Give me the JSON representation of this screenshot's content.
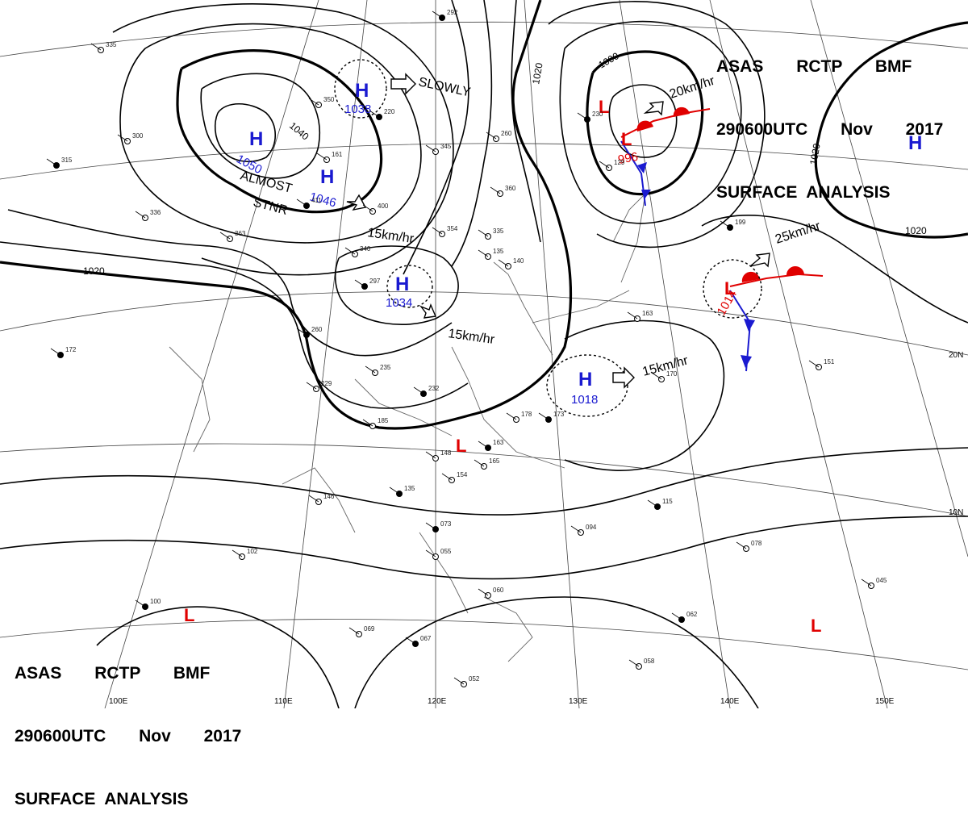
{
  "header": {
    "line1_a": "ASAS",
    "line1_b": "RCTP",
    "line1_c": "BMF",
    "line2_a": "290600UTC",
    "line2_b": "Nov",
    "line2_c": "2017",
    "line3": "SURFACE  ANALYSIS"
  },
  "isobar_labels": [
    "1040",
    "1020",
    "1020",
    "1020",
    "1000"
  ],
  "highs": [
    {
      "symbol": "H",
      "value": "1050"
    },
    {
      "symbol": "H",
      "value": "1046"
    },
    {
      "symbol": "H",
      "value": "1038"
    },
    {
      "symbol": "H",
      "value": "1034"
    },
    {
      "symbol": "H",
      "value": "1018"
    },
    {
      "symbol": "H",
      "value": ""
    }
  ],
  "lows": [
    {
      "symbol": "L",
      "value": "996"
    },
    {
      "symbol": "L",
      "value": "1014"
    },
    {
      "symbol": "L",
      "value": ""
    },
    {
      "symbol": "L",
      "value": ""
    },
    {
      "symbol": "L",
      "value": ""
    }
  ],
  "motions": [
    "SLOWLY",
    "ALMOST",
    "STNR",
    "15km/hr",
    "15km/hr",
    "15km/hr",
    "20km/hr",
    "25km/hr"
  ],
  "lat_labels": [
    "20N",
    "10N"
  ],
  "lon_labels": [
    "100E",
    "110E",
    "120E",
    "130E",
    "140E",
    "150E"
  ],
  "station_plots": [
    "292",
    "335",
    "300",
    "315",
    "336",
    "363",
    "172",
    "350",
    "161",
    "411",
    "400",
    "340",
    "297",
    "354",
    "335",
    "260",
    "235",
    "229",
    "232",
    "185",
    "146",
    "135",
    "148",
    "154",
    "163",
    "165",
    "178",
    "173",
    "170",
    "151",
    "115",
    "094",
    "078",
    "073",
    "055",
    "060",
    "062",
    "058",
    "045",
    "100",
    "102",
    "069",
    "067",
    "052",
    "260",
    "220",
    "345",
    "360",
    "230",
    "129",
    "163",
    "199",
    "135",
    "140",
    "1O"
  ],
  "colors": {
    "high": "#1a1ad0",
    "low": "#e00000",
    "isobar": "#000000",
    "grid": "#444444",
    "coast": "#666666"
  }
}
